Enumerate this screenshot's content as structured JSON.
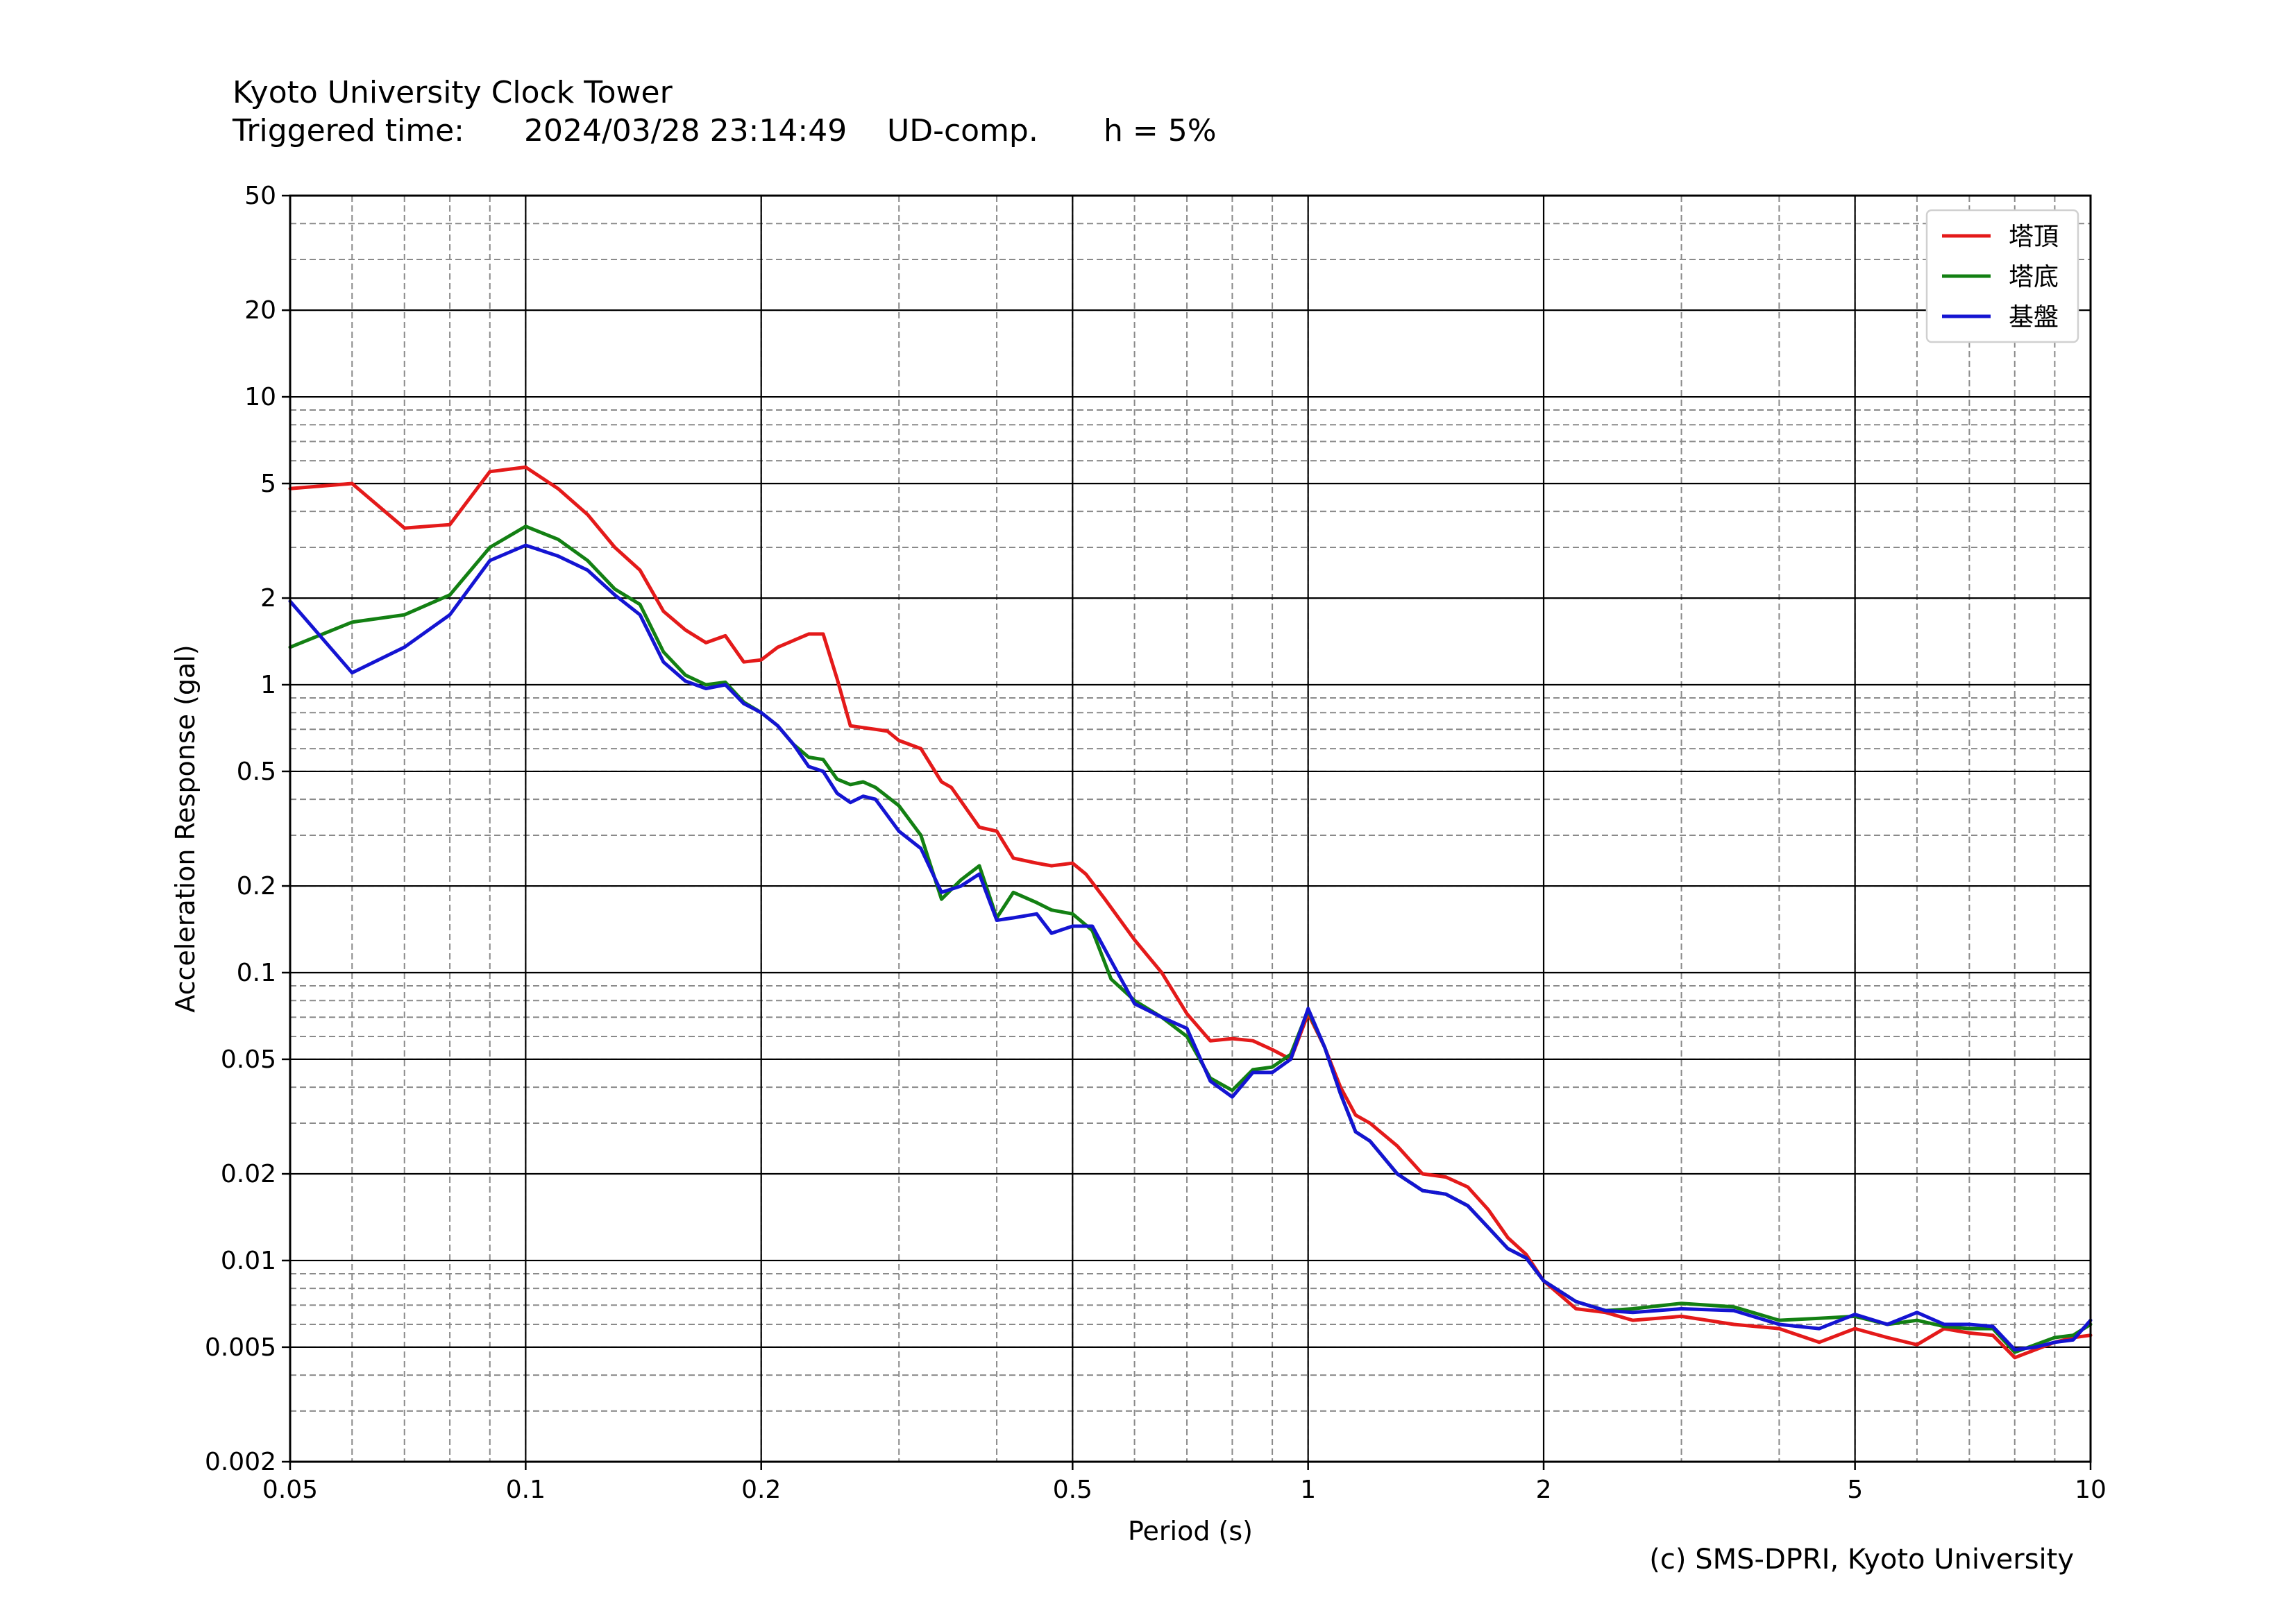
{
  "header": {
    "station": "Kyoto University Clock Tower",
    "trigger_label": "Triggered time:",
    "trigger_time": "2024/03/28 23:14:49",
    "component": "UD-comp.",
    "damping": "h = 5%"
  },
  "credit": "(c) SMS-DPRI, Kyoto University",
  "chart_data": {
    "type": "line",
    "title": "",
    "xlabel": "Period (s)",
    "ylabel": "Acceleration Response (gal)",
    "xscale": "log",
    "yscale": "log",
    "xlim": [
      0.05,
      10
    ],
    "ylim": [
      0.002,
      50
    ],
    "grid": true,
    "legend_position": "top-right",
    "x_ticks": [
      {
        "v": 0.05,
        "label": "0.05"
      },
      {
        "v": 0.1,
        "label": "0.1"
      },
      {
        "v": 0.2,
        "label": "0.2"
      },
      {
        "v": 0.5,
        "label": "0.5"
      },
      {
        "v": 1,
        "label": "1"
      },
      {
        "v": 2,
        "label": "2"
      },
      {
        "v": 5,
        "label": "5"
      },
      {
        "v": 10,
        "label": "10"
      }
    ],
    "y_ticks": [
      {
        "v": 0.002,
        "label": "0.002"
      },
      {
        "v": 0.005,
        "label": "0.005"
      },
      {
        "v": 0.01,
        "label": "0.01"
      },
      {
        "v": 0.02,
        "label": "0.02"
      },
      {
        "v": 0.05,
        "label": "0.05"
      },
      {
        "v": 0.1,
        "label": "0.1"
      },
      {
        "v": 0.2,
        "label": "0.2"
      },
      {
        "v": 0.5,
        "label": "0.5"
      },
      {
        "v": 1,
        "label": "1"
      },
      {
        "v": 2,
        "label": "2"
      },
      {
        "v": 5,
        "label": "5"
      },
      {
        "v": 10,
        "label": "10"
      },
      {
        "v": 20,
        "label": "20"
      },
      {
        "v": 50,
        "label": "50"
      }
    ],
    "series": [
      {
        "name": "塔頂",
        "color": "#e41a1a",
        "points": [
          [
            0.05,
            4.8
          ],
          [
            0.06,
            5.0
          ],
          [
            0.07,
            3.5
          ],
          [
            0.08,
            3.6
          ],
          [
            0.09,
            5.5
          ],
          [
            0.1,
            5.7
          ],
          [
            0.11,
            4.8
          ],
          [
            0.12,
            3.9
          ],
          [
            0.13,
            3.0
          ],
          [
            0.14,
            2.5
          ],
          [
            0.15,
            1.8
          ],
          [
            0.16,
            1.55
          ],
          [
            0.17,
            1.4
          ],
          [
            0.18,
            1.48
          ],
          [
            0.19,
            1.2
          ],
          [
            0.2,
            1.22
          ],
          [
            0.21,
            1.35
          ],
          [
            0.23,
            1.5
          ],
          [
            0.24,
            1.5
          ],
          [
            0.25,
            1.05
          ],
          [
            0.26,
            0.72
          ],
          [
            0.28,
            0.7
          ],
          [
            0.29,
            0.69
          ],
          [
            0.3,
            0.64
          ],
          [
            0.32,
            0.6
          ],
          [
            0.34,
            0.46
          ],
          [
            0.35,
            0.44
          ],
          [
            0.38,
            0.32
          ],
          [
            0.4,
            0.31
          ],
          [
            0.42,
            0.25
          ],
          [
            0.45,
            0.24
          ],
          [
            0.47,
            0.235
          ],
          [
            0.5,
            0.24
          ],
          [
            0.52,
            0.22
          ],
          [
            0.55,
            0.18
          ],
          [
            0.6,
            0.13
          ],
          [
            0.65,
            0.1
          ],
          [
            0.7,
            0.072
          ],
          [
            0.75,
            0.058
          ],
          [
            0.8,
            0.059
          ],
          [
            0.85,
            0.058
          ],
          [
            0.9,
            0.054
          ],
          [
            0.95,
            0.05
          ],
          [
            1.0,
            0.072
          ],
          [
            1.05,
            0.055
          ],
          [
            1.1,
            0.04
          ],
          [
            1.15,
            0.032
          ],
          [
            1.2,
            0.03
          ],
          [
            1.3,
            0.025
          ],
          [
            1.4,
            0.02
          ],
          [
            1.5,
            0.0195
          ],
          [
            1.6,
            0.018
          ],
          [
            1.7,
            0.015
          ],
          [
            1.8,
            0.012
          ],
          [
            1.9,
            0.0105
          ],
          [
            2.0,
            0.0085
          ],
          [
            2.2,
            0.0068
          ],
          [
            2.4,
            0.0066
          ],
          [
            2.6,
            0.0062
          ],
          [
            3.0,
            0.0064
          ],
          [
            3.5,
            0.006
          ],
          [
            4.0,
            0.0058
          ],
          [
            4.5,
            0.0052
          ],
          [
            5.0,
            0.0058
          ],
          [
            5.5,
            0.0054
          ],
          [
            6.0,
            0.0051
          ],
          [
            6.5,
            0.0058
          ],
          [
            7.0,
            0.0056
          ],
          [
            7.5,
            0.0055
          ],
          [
            8.0,
            0.0046
          ],
          [
            8.5,
            0.0049
          ],
          [
            9.0,
            0.0052
          ],
          [
            9.5,
            0.0054
          ],
          [
            10.0,
            0.0055
          ]
        ]
      },
      {
        "name": "塔底",
        "color": "#138013",
        "points": [
          [
            0.05,
            1.35
          ],
          [
            0.06,
            1.65
          ],
          [
            0.07,
            1.75
          ],
          [
            0.08,
            2.05
          ],
          [
            0.09,
            3.0
          ],
          [
            0.1,
            3.55
          ],
          [
            0.11,
            3.2
          ],
          [
            0.12,
            2.7
          ],
          [
            0.13,
            2.15
          ],
          [
            0.14,
            1.9
          ],
          [
            0.15,
            1.3
          ],
          [
            0.16,
            1.08
          ],
          [
            0.17,
            1.0
          ],
          [
            0.18,
            1.02
          ],
          [
            0.19,
            0.87
          ],
          [
            0.2,
            0.8
          ],
          [
            0.21,
            0.72
          ],
          [
            0.22,
            0.62
          ],
          [
            0.23,
            0.56
          ],
          [
            0.24,
            0.55
          ],
          [
            0.25,
            0.47
          ],
          [
            0.26,
            0.45
          ],
          [
            0.27,
            0.46
          ],
          [
            0.28,
            0.44
          ],
          [
            0.3,
            0.38
          ],
          [
            0.32,
            0.3
          ],
          [
            0.34,
            0.18
          ],
          [
            0.36,
            0.21
          ],
          [
            0.38,
            0.235
          ],
          [
            0.4,
            0.155
          ],
          [
            0.42,
            0.19
          ],
          [
            0.45,
            0.175
          ],
          [
            0.47,
            0.165
          ],
          [
            0.5,
            0.16
          ],
          [
            0.53,
            0.14
          ],
          [
            0.56,
            0.095
          ],
          [
            0.6,
            0.08
          ],
          [
            0.65,
            0.07
          ],
          [
            0.7,
            0.06
          ],
          [
            0.75,
            0.043
          ],
          [
            0.8,
            0.039
          ],
          [
            0.85,
            0.046
          ],
          [
            0.9,
            0.047
          ],
          [
            0.95,
            0.052
          ],
          [
            1.0,
            0.074
          ],
          [
            1.05,
            0.055
          ],
          [
            1.1,
            0.038
          ],
          [
            1.15,
            0.028
          ],
          [
            1.2,
            0.026
          ],
          [
            1.3,
            0.02
          ],
          [
            1.4,
            0.0175
          ],
          [
            1.5,
            0.017
          ],
          [
            1.6,
            0.0155
          ],
          [
            1.7,
            0.013
          ],
          [
            1.8,
            0.011
          ],
          [
            1.9,
            0.0102
          ],
          [
            2.0,
            0.0085
          ],
          [
            2.2,
            0.0072
          ],
          [
            2.4,
            0.0067
          ],
          [
            2.6,
            0.0068
          ],
          [
            3.0,
            0.0071
          ],
          [
            3.5,
            0.0069
          ],
          [
            4.0,
            0.0062
          ],
          [
            4.5,
            0.0063
          ],
          [
            5.0,
            0.0064
          ],
          [
            5.5,
            0.006
          ],
          [
            6.0,
            0.0062
          ],
          [
            6.5,
            0.0059
          ],
          [
            7.0,
            0.0058
          ],
          [
            7.5,
            0.0058
          ],
          [
            8.0,
            0.0048
          ],
          [
            8.5,
            0.0051
          ],
          [
            9.0,
            0.0054
          ],
          [
            9.5,
            0.0055
          ],
          [
            10.0,
            0.006
          ]
        ]
      },
      {
        "name": "基盤",
        "color": "#1414d2",
        "points": [
          [
            0.05,
            1.95
          ],
          [
            0.06,
            1.1
          ],
          [
            0.07,
            1.35
          ],
          [
            0.08,
            1.75
          ],
          [
            0.09,
            2.7
          ],
          [
            0.1,
            3.05
          ],
          [
            0.11,
            2.8
          ],
          [
            0.12,
            2.5
          ],
          [
            0.13,
            2.05
          ],
          [
            0.14,
            1.75
          ],
          [
            0.15,
            1.2
          ],
          [
            0.16,
            1.03
          ],
          [
            0.17,
            0.97
          ],
          [
            0.18,
            1.0
          ],
          [
            0.19,
            0.86
          ],
          [
            0.2,
            0.8
          ],
          [
            0.21,
            0.72
          ],
          [
            0.22,
            0.62
          ],
          [
            0.23,
            0.52
          ],
          [
            0.24,
            0.5
          ],
          [
            0.25,
            0.42
          ],
          [
            0.26,
            0.39
          ],
          [
            0.27,
            0.41
          ],
          [
            0.28,
            0.4
          ],
          [
            0.3,
            0.31
          ],
          [
            0.32,
            0.27
          ],
          [
            0.34,
            0.19
          ],
          [
            0.36,
            0.2
          ],
          [
            0.38,
            0.22
          ],
          [
            0.4,
            0.152
          ],
          [
            0.42,
            0.155
          ],
          [
            0.45,
            0.16
          ],
          [
            0.47,
            0.137
          ],
          [
            0.5,
            0.145
          ],
          [
            0.53,
            0.145
          ],
          [
            0.56,
            0.11
          ],
          [
            0.6,
            0.078
          ],
          [
            0.65,
            0.07
          ],
          [
            0.7,
            0.064
          ],
          [
            0.75,
            0.042
          ],
          [
            0.8,
            0.037
          ],
          [
            0.85,
            0.045
          ],
          [
            0.9,
            0.045
          ],
          [
            0.95,
            0.05
          ],
          [
            1.0,
            0.075
          ],
          [
            1.05,
            0.055
          ],
          [
            1.1,
            0.038
          ],
          [
            1.15,
            0.028
          ],
          [
            1.2,
            0.026
          ],
          [
            1.3,
            0.02
          ],
          [
            1.4,
            0.0175
          ],
          [
            1.5,
            0.017
          ],
          [
            1.6,
            0.0155
          ],
          [
            1.7,
            0.013
          ],
          [
            1.8,
            0.011
          ],
          [
            1.9,
            0.0102
          ],
          [
            2.0,
            0.0085
          ],
          [
            2.2,
            0.0072
          ],
          [
            2.4,
            0.0067
          ],
          [
            2.6,
            0.0066
          ],
          [
            3.0,
            0.0068
          ],
          [
            3.5,
            0.0067
          ],
          [
            4.0,
            0.006
          ],
          [
            4.5,
            0.0058
          ],
          [
            5.0,
            0.0065
          ],
          [
            5.5,
            0.006
          ],
          [
            6.0,
            0.0066
          ],
          [
            6.5,
            0.006
          ],
          [
            7.0,
            0.006
          ],
          [
            7.5,
            0.0059
          ],
          [
            8.0,
            0.0049
          ],
          [
            8.5,
            0.005
          ],
          [
            9.0,
            0.0052
          ],
          [
            9.5,
            0.0053
          ],
          [
            10.0,
            0.0062
          ]
        ]
      }
    ]
  }
}
